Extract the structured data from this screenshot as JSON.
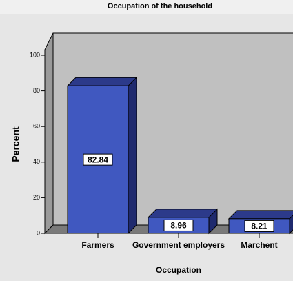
{
  "chart_data": {
    "type": "bar3d",
    "title": "Occupation of the household",
    "categories": [
      "Farmers",
      "Government employers",
      "Marchent"
    ],
    "values": [
      82.84,
      8.96,
      8.21
    ],
    "color": "#4058c0",
    "ylim": [
      0,
      100
    ],
    "yticks": [
      0,
      20,
      40,
      60,
      80,
      100
    ],
    "ylabel": "Percent",
    "xlabel": "Occupation"
  }
}
